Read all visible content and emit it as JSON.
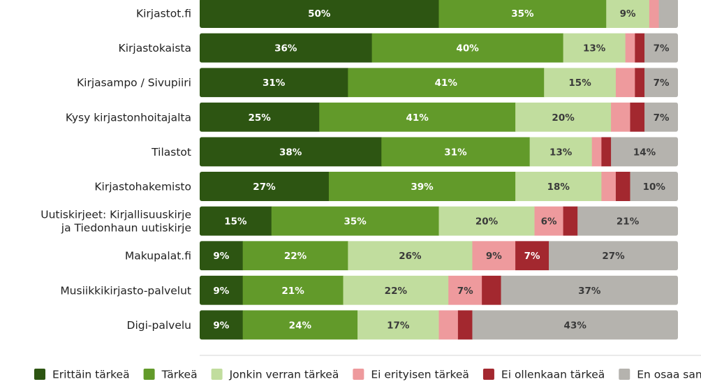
{
  "chart_data": {
    "type": "bar",
    "orientation": "horizontal",
    "stacked": true,
    "normalized_percent": true,
    "categories": [
      [
        "Kirjastot.fi"
      ],
      [
        "Kirjastokaista"
      ],
      [
        "Kirjasampo / Sivupiiri"
      ],
      [
        "Kysy kirjastonhoitajalta"
      ],
      [
        "Tilastot"
      ],
      [
        "Kirjastohakemisto"
      ],
      [
        "Uutiskirjeet: Kirjallisuuskirje",
        "ja Tiedonhaun uutiskirje"
      ],
      [
        "Makupalat.fi"
      ],
      [
        "Musiikkikirjasto-palvelut"
      ],
      [
        "Digi-palvelu"
      ]
    ],
    "series": [
      {
        "name": "Erittäin tärkeä",
        "color": "#2d5512",
        "text_color": "#ffffff",
        "values": [
          50,
          36,
          31,
          25,
          38,
          27,
          15,
          9,
          9,
          9
        ]
      },
      {
        "name": "Tärkeä",
        "color": "#629a2a",
        "text_color": "#ffffff",
        "values": [
          35,
          40,
          41,
          41,
          31,
          39,
          35,
          22,
          21,
          24
        ]
      },
      {
        "name": "Jonkin verran tärkeä",
        "color": "#c1dd9e",
        "text_color": "#3a3a3a",
        "values": [
          9,
          13,
          15,
          20,
          13,
          18,
          20,
          26,
          22,
          17
        ]
      },
      {
        "name": "Ei erityisen tärkeä",
        "color": "#ee9a9d",
        "text_color": "#3a3a3a",
        "values": [
          2,
          2,
          4,
          4,
          2,
          3,
          6,
          9,
          7,
          4
        ]
      },
      {
        "name": "Ei ollenkaan tärkeä",
        "color": "#a3282f",
        "text_color": "#ffffff",
        "values": [
          0,
          2,
          2,
          3,
          2,
          3,
          3,
          7,
          4,
          3
        ]
      },
      {
        "name": "En osaa sanoa",
        "color": "#b5b3ae",
        "text_color": "#3a3a3a",
        "values": [
          4,
          7,
          7,
          7,
          14,
          10,
          21,
          27,
          37,
          43
        ]
      }
    ],
    "data_labels": [
      [
        "50%",
        "35%",
        "9%",
        "",
        "",
        ""
      ],
      [
        "36%",
        "40%",
        "13%",
        "",
        "",
        "7%"
      ],
      [
        "31%",
        "41%",
        "15%",
        "",
        "",
        "7%"
      ],
      [
        "25%",
        "41%",
        "20%",
        "",
        "",
        "7%"
      ],
      [
        "38%",
        "31%",
        "13%",
        "",
        "",
        "14%"
      ],
      [
        "27%",
        "39%",
        "18%",
        "",
        "",
        "10%"
      ],
      [
        "15%",
        "35%",
        "20%",
        "6%",
        "",
        "21%"
      ],
      [
        "9%",
        "22%",
        "26%",
        "9%",
        "7%",
        "27%"
      ],
      [
        "9%",
        "21%",
        "22%",
        "7%",
        "",
        "37%"
      ],
      [
        "9%",
        "24%",
        "17%",
        "",
        "",
        "43%"
      ]
    ],
    "legend": {
      "placement": "bottom"
    },
    "grid": false
  }
}
